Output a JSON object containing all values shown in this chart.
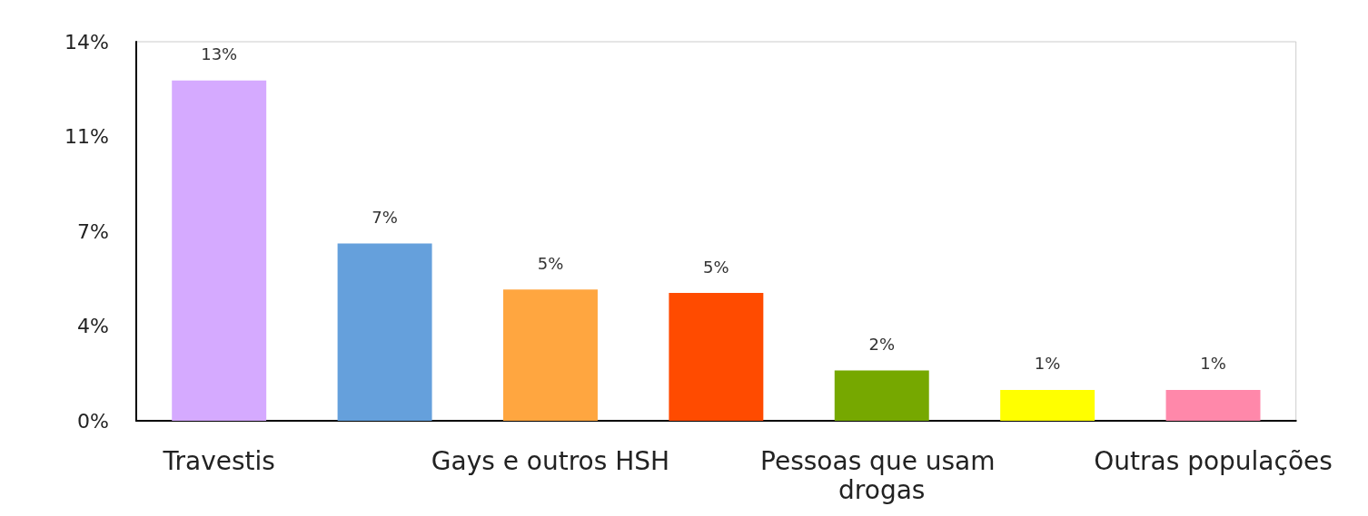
{
  "chart_data": {
    "type": "bar",
    "categories": [
      "Travestis",
      null,
      "Gays e outros HSH",
      null,
      "Pessoas que usam drogas",
      null,
      "Outras populações"
    ],
    "values": [
      12.57,
      6.55,
      4.85,
      4.72,
      1.86,
      1.14,
      1.14
    ],
    "colors": [
      "#d5aaff",
      "#65a0dc",
      "#ffa640",
      "#ff4b00",
      "#76a800",
      "#ffff00",
      "#ff88aa"
    ],
    "value_labels": [
      "13%",
      "7%",
      "5%",
      "5%",
      "2%",
      "1%",
      "1%"
    ],
    "ylim": [
      0,
      14
    ],
    "yticks": [
      {
        "value": 0,
        "label": "0%"
      },
      {
        "value": 3.5,
        "label": "4%"
      },
      {
        "value": 7,
        "label": "7%"
      },
      {
        "value": 10.5,
        "label": "11%"
      },
      {
        "value": 14,
        "label": "14%"
      }
    ],
    "grid": false
  }
}
